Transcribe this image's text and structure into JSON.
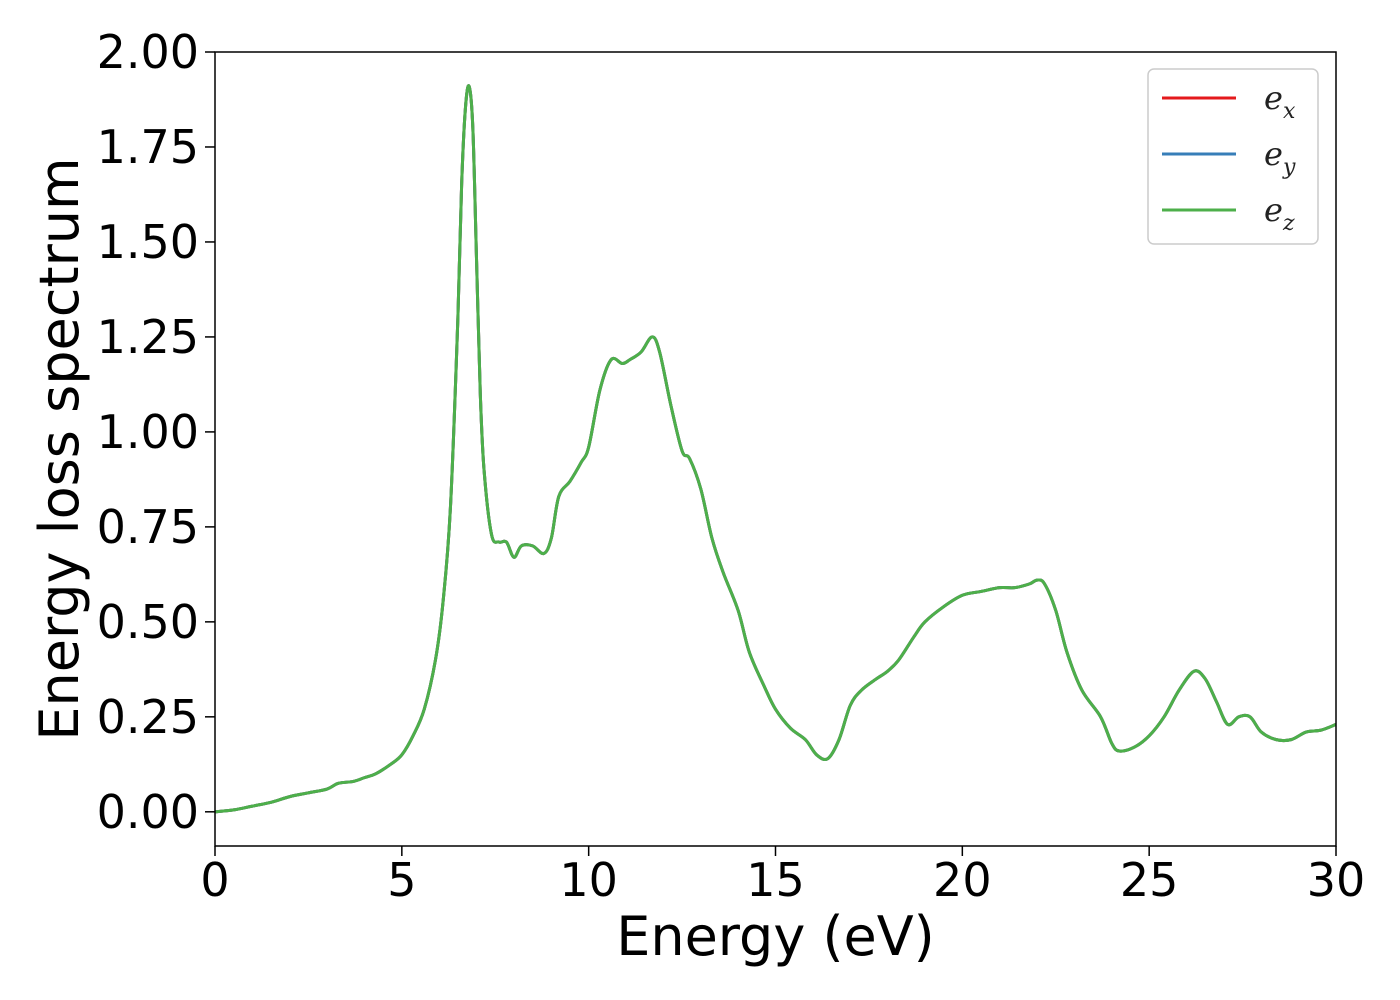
{
  "chart_data": {
    "type": "line",
    "title": "",
    "xlabel": "Energy (eV)",
    "ylabel": "Energy loss spectrum",
    "xlim": [
      0,
      30
    ],
    "ylim": [
      -0.09,
      2.0
    ],
    "xticks": [
      0,
      5,
      10,
      15,
      20,
      25,
      30
    ],
    "xtick_labels": [
      "0",
      "5",
      "10",
      "15",
      "20",
      "25",
      "30"
    ],
    "yticks": [
      0.0,
      0.25,
      0.5,
      0.75,
      1.0,
      1.25,
      1.5,
      1.75,
      2.0
    ],
    "ytick_labels": [
      "0.00",
      "0.25",
      "0.50",
      "0.75",
      "1.00",
      "1.25",
      "1.50",
      "1.75",
      "2.00"
    ],
    "grid": false,
    "legend_position": "top-right",
    "x": [
      0,
      0.5,
      1,
      1.5,
      2,
      2.5,
      3,
      3.3,
      3.7,
      4,
      4.3,
      4.7,
      5,
      5.3,
      5.6,
      5.9,
      6.1,
      6.3,
      6.5,
      6.6,
      6.7,
      6.8,
      6.9,
      7.0,
      7.1,
      7.2,
      7.4,
      7.6,
      7.8,
      8.0,
      8.2,
      8.5,
      8.8,
      9.0,
      9.2,
      9.5,
      9.8,
      10.0,
      10.3,
      10.6,
      10.9,
      11.1,
      11.4,
      11.7,
      11.9,
      12.2,
      12.5,
      12.7,
      13.0,
      13.3,
      13.6,
      14.0,
      14.3,
      14.7,
      15.0,
      15.4,
      15.8,
      16.1,
      16.4,
      16.7,
      17.0,
      17.3,
      17.7,
      18.0,
      18.3,
      18.7,
      19.0,
      19.5,
      20.0,
      20.5,
      21.0,
      21.4,
      21.8,
      22.0,
      22.2,
      22.5,
      22.8,
      23.2,
      23.7,
      24.0,
      24.2,
      24.6,
      25.0,
      25.4,
      25.8,
      26.2,
      26.5,
      26.8,
      27.1,
      27.4,
      27.7,
      28.0,
      28.4,
      28.8,
      29.2,
      29.6,
      30.0
    ],
    "series": [
      {
        "name": "e_x",
        "color": "#e41a1c",
        "y": [
          0.0,
          0.005,
          0.015,
          0.025,
          0.04,
          0.05,
          0.06,
          0.075,
          0.08,
          0.09,
          0.1,
          0.125,
          0.15,
          0.2,
          0.27,
          0.4,
          0.55,
          0.8,
          1.3,
          1.65,
          1.85,
          1.91,
          1.8,
          1.45,
          1.1,
          0.9,
          0.73,
          0.71,
          0.71,
          0.67,
          0.7,
          0.7,
          0.68,
          0.72,
          0.83,
          0.87,
          0.92,
          0.96,
          1.11,
          1.19,
          1.18,
          1.19,
          1.21,
          1.25,
          1.21,
          1.07,
          0.95,
          0.93,
          0.85,
          0.72,
          0.63,
          0.53,
          0.42,
          0.33,
          0.27,
          0.22,
          0.19,
          0.15,
          0.14,
          0.19,
          0.28,
          0.32,
          0.35,
          0.37,
          0.4,
          0.46,
          0.5,
          0.54,
          0.57,
          0.58,
          0.59,
          0.59,
          0.6,
          0.61,
          0.6,
          0.53,
          0.42,
          0.32,
          0.25,
          0.18,
          0.16,
          0.17,
          0.2,
          0.25,
          0.32,
          0.37,
          0.35,
          0.29,
          0.23,
          0.25,
          0.25,
          0.21,
          0.19,
          0.19,
          0.21,
          0.215,
          0.23
        ]
      },
      {
        "name": "e_y",
        "color": "#377eb8",
        "y": [
          0.0,
          0.005,
          0.015,
          0.025,
          0.04,
          0.05,
          0.06,
          0.075,
          0.08,
          0.09,
          0.1,
          0.125,
          0.15,
          0.2,
          0.27,
          0.4,
          0.55,
          0.8,
          1.3,
          1.65,
          1.85,
          1.91,
          1.8,
          1.45,
          1.1,
          0.9,
          0.73,
          0.71,
          0.71,
          0.67,
          0.7,
          0.7,
          0.68,
          0.72,
          0.83,
          0.87,
          0.92,
          0.96,
          1.11,
          1.19,
          1.18,
          1.19,
          1.21,
          1.25,
          1.21,
          1.07,
          0.95,
          0.93,
          0.85,
          0.72,
          0.63,
          0.53,
          0.42,
          0.33,
          0.27,
          0.22,
          0.19,
          0.15,
          0.14,
          0.19,
          0.28,
          0.32,
          0.35,
          0.37,
          0.4,
          0.46,
          0.5,
          0.54,
          0.57,
          0.58,
          0.59,
          0.59,
          0.6,
          0.61,
          0.6,
          0.53,
          0.42,
          0.32,
          0.25,
          0.18,
          0.16,
          0.17,
          0.2,
          0.25,
          0.32,
          0.37,
          0.35,
          0.29,
          0.23,
          0.25,
          0.25,
          0.21,
          0.19,
          0.19,
          0.21,
          0.215,
          0.23
        ]
      },
      {
        "name": "e_z",
        "color": "#4daf4a",
        "y": [
          0.0,
          0.005,
          0.015,
          0.025,
          0.04,
          0.05,
          0.06,
          0.075,
          0.08,
          0.09,
          0.1,
          0.125,
          0.15,
          0.2,
          0.27,
          0.4,
          0.55,
          0.8,
          1.3,
          1.65,
          1.85,
          1.91,
          1.8,
          1.45,
          1.1,
          0.9,
          0.73,
          0.71,
          0.71,
          0.67,
          0.7,
          0.7,
          0.68,
          0.72,
          0.83,
          0.87,
          0.92,
          0.96,
          1.11,
          1.19,
          1.18,
          1.19,
          1.21,
          1.25,
          1.21,
          1.07,
          0.95,
          0.93,
          0.85,
          0.72,
          0.63,
          0.53,
          0.42,
          0.33,
          0.27,
          0.22,
          0.19,
          0.15,
          0.14,
          0.19,
          0.28,
          0.32,
          0.35,
          0.37,
          0.4,
          0.46,
          0.5,
          0.54,
          0.57,
          0.58,
          0.59,
          0.59,
          0.6,
          0.61,
          0.6,
          0.53,
          0.42,
          0.32,
          0.25,
          0.18,
          0.16,
          0.17,
          0.2,
          0.25,
          0.32,
          0.37,
          0.35,
          0.29,
          0.23,
          0.25,
          0.25,
          0.21,
          0.19,
          0.19,
          0.21,
          0.215,
          0.23
        ]
      }
    ],
    "legend": [
      {
        "base": "e",
        "sub": "x",
        "color": "#e41a1c"
      },
      {
        "base": "e",
        "sub": "y",
        "color": "#377eb8"
      },
      {
        "base": "e",
        "sub": "z",
        "color": "#4daf4a"
      }
    ]
  }
}
